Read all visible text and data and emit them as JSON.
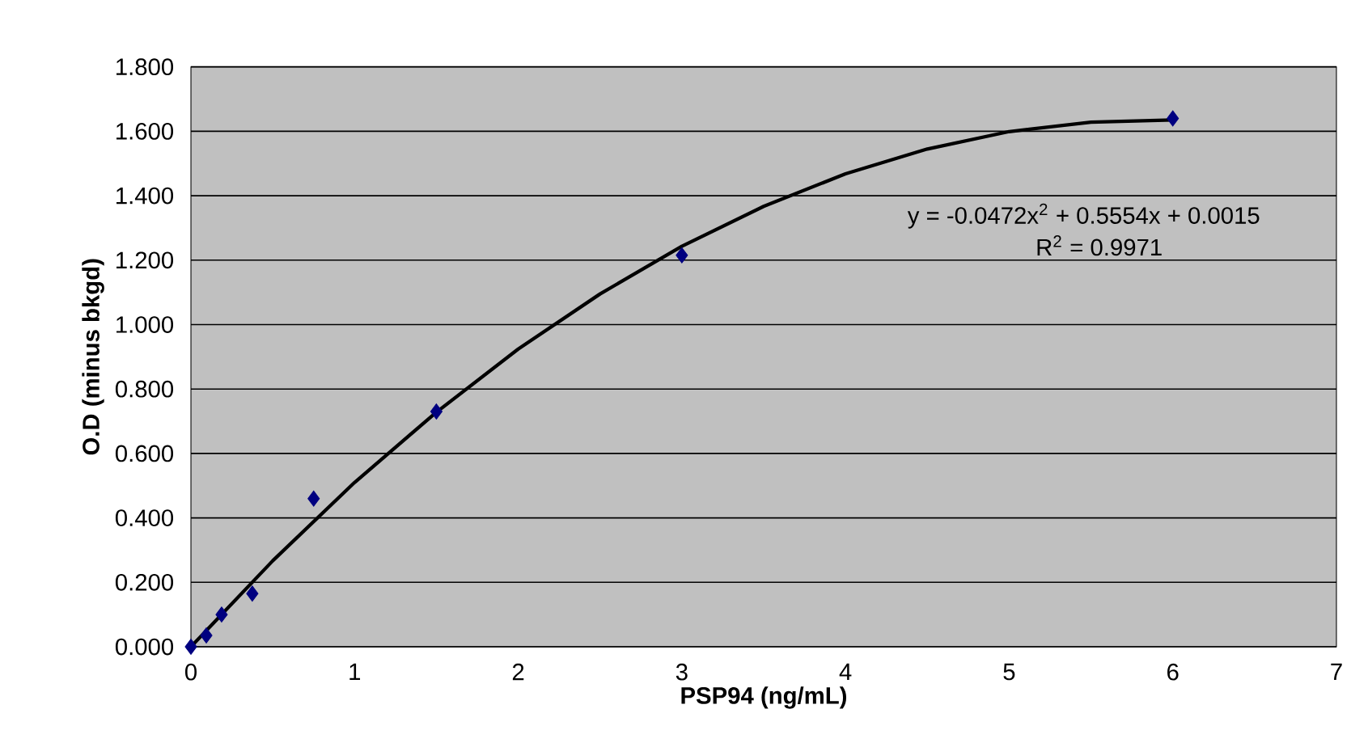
{
  "chart_data": {
    "type": "scatter",
    "xlabel": "PSP94 (ng/mL)",
    "ylabel": "O.D (minus bkgd)",
    "xlim": [
      0,
      7
    ],
    "xticks": [
      0,
      1,
      2,
      3,
      4,
      5,
      6,
      7
    ],
    "ylim": [
      0,
      1.8
    ],
    "yticks": [
      {
        "value": 0,
        "label": "0.000"
      },
      {
        "value": 0.2,
        "label": "0.200"
      },
      {
        "value": 0.4,
        "label": "0.400"
      },
      {
        "value": 0.6,
        "label": "0.600"
      },
      {
        "value": 0.8,
        "label": "0.800"
      },
      {
        "value": 1.0,
        "label": "1.000"
      },
      {
        "value": 1.2,
        "label": "1.200"
      },
      {
        "value": 1.4,
        "label": "1.400"
      },
      {
        "value": 1.6,
        "label": "1.600"
      },
      {
        "value": 1.8,
        "label": "1.800"
      }
    ],
    "grid": "y",
    "series": [
      {
        "color": "#000080",
        "marker": "diamond",
        "x": [
          0,
          0.094,
          0.1875,
          0.375,
          0.75,
          1.5,
          3,
          6
        ],
        "values": [
          0.0,
          0.035,
          0.1,
          0.165,
          0.46,
          0.73,
          1.215,
          1.64
        ]
      },
      {
        "type": "line",
        "color": "#000000",
        "marker": "none",
        "line_style": "solid",
        "x": [
          0,
          0.5,
          1,
          1.5,
          2,
          2.5,
          3,
          3.5,
          4,
          4.5,
          5,
          5.5,
          6
        ],
        "values": [
          0.0,
          0.267,
          0.51,
          0.728,
          0.924,
          1.095,
          1.243,
          1.367,
          1.468,
          1.545,
          1.599,
          1.628,
          1.635
        ]
      }
    ],
    "annotations": [
      "y = -0.0472x$^{2}$ + 0.5554x + 0.0015",
      "R$^{2}$ = 0.9971"
    ]
  }
}
